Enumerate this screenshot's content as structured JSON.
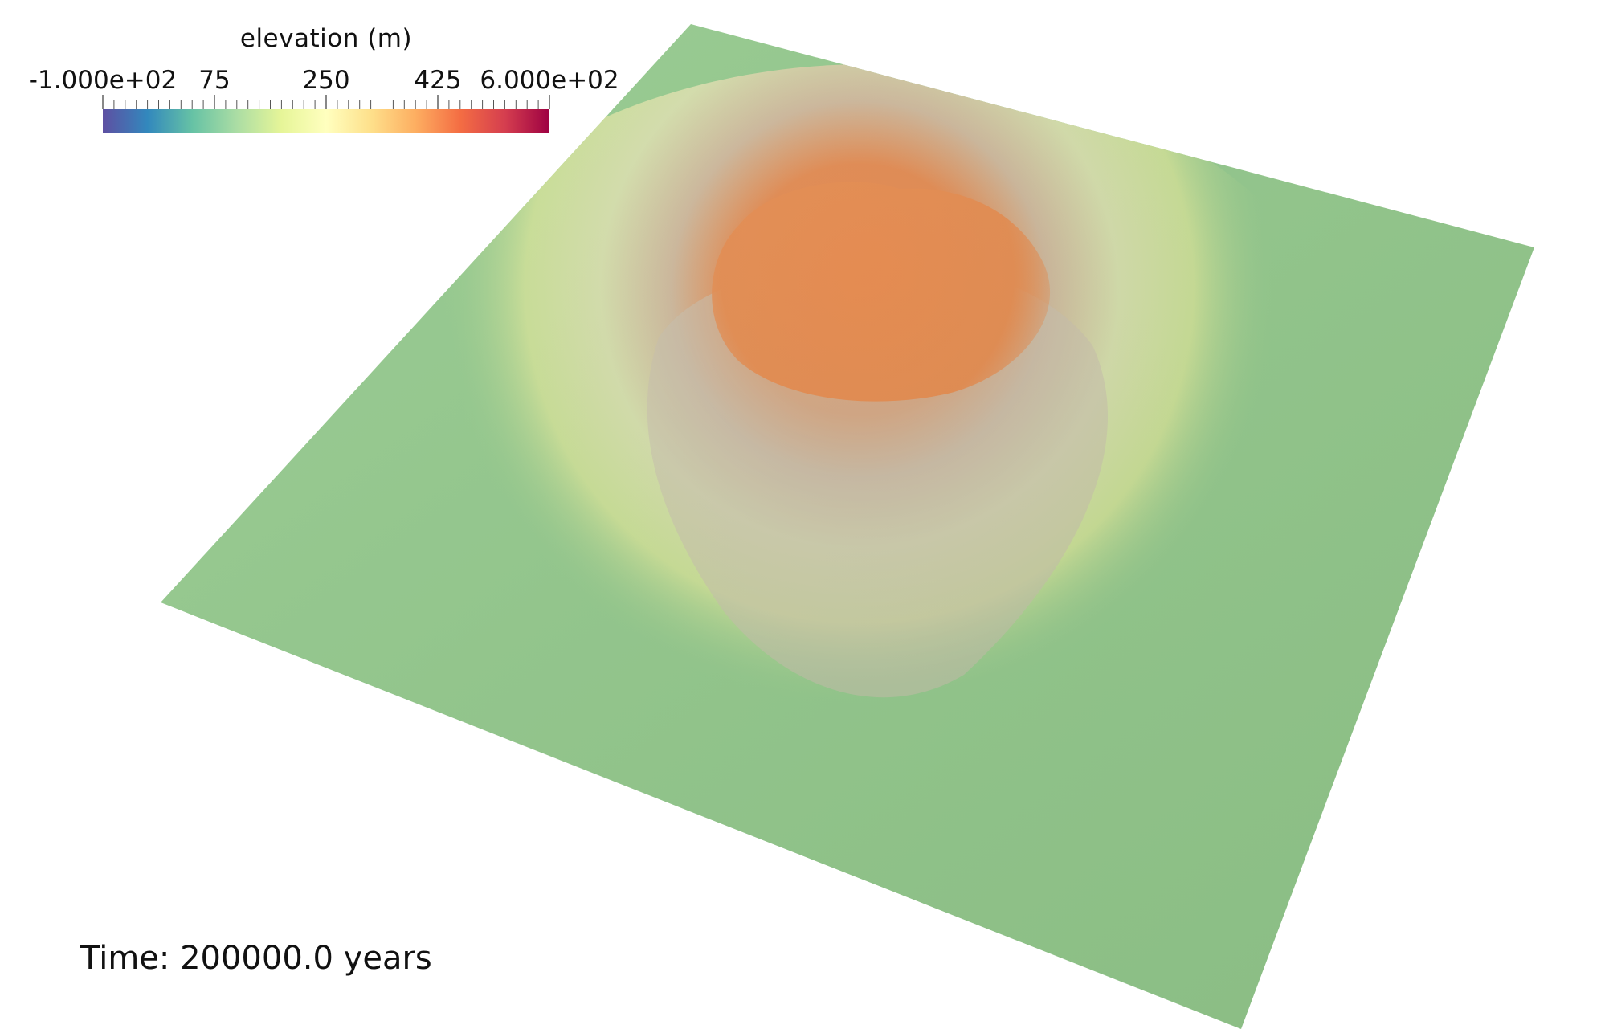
{
  "legend": {
    "title": "elevation (m)",
    "ticks": [
      "-1.000e+02",
      "75",
      "250",
      "425",
      "6.000e+02"
    ],
    "range": [
      -100,
      600
    ],
    "colormap": [
      "#5e4fa2",
      "#3288bd",
      "#66c2a5",
      "#abdda4",
      "#e6f598",
      "#ffffbf",
      "#fee08b",
      "#fdae61",
      "#f46d43",
      "#d53e4f",
      "#9e0142"
    ]
  },
  "time_label": "Time: 200000.0 years",
  "surface": {
    "type": "terrain elevation surface (volcano-shaped)",
    "colors": {
      "plain": "#93c98c",
      "mid_slope": "#d9e79a",
      "rocky_slope": "#c9c2ae",
      "summit": "#e8894c"
    }
  }
}
